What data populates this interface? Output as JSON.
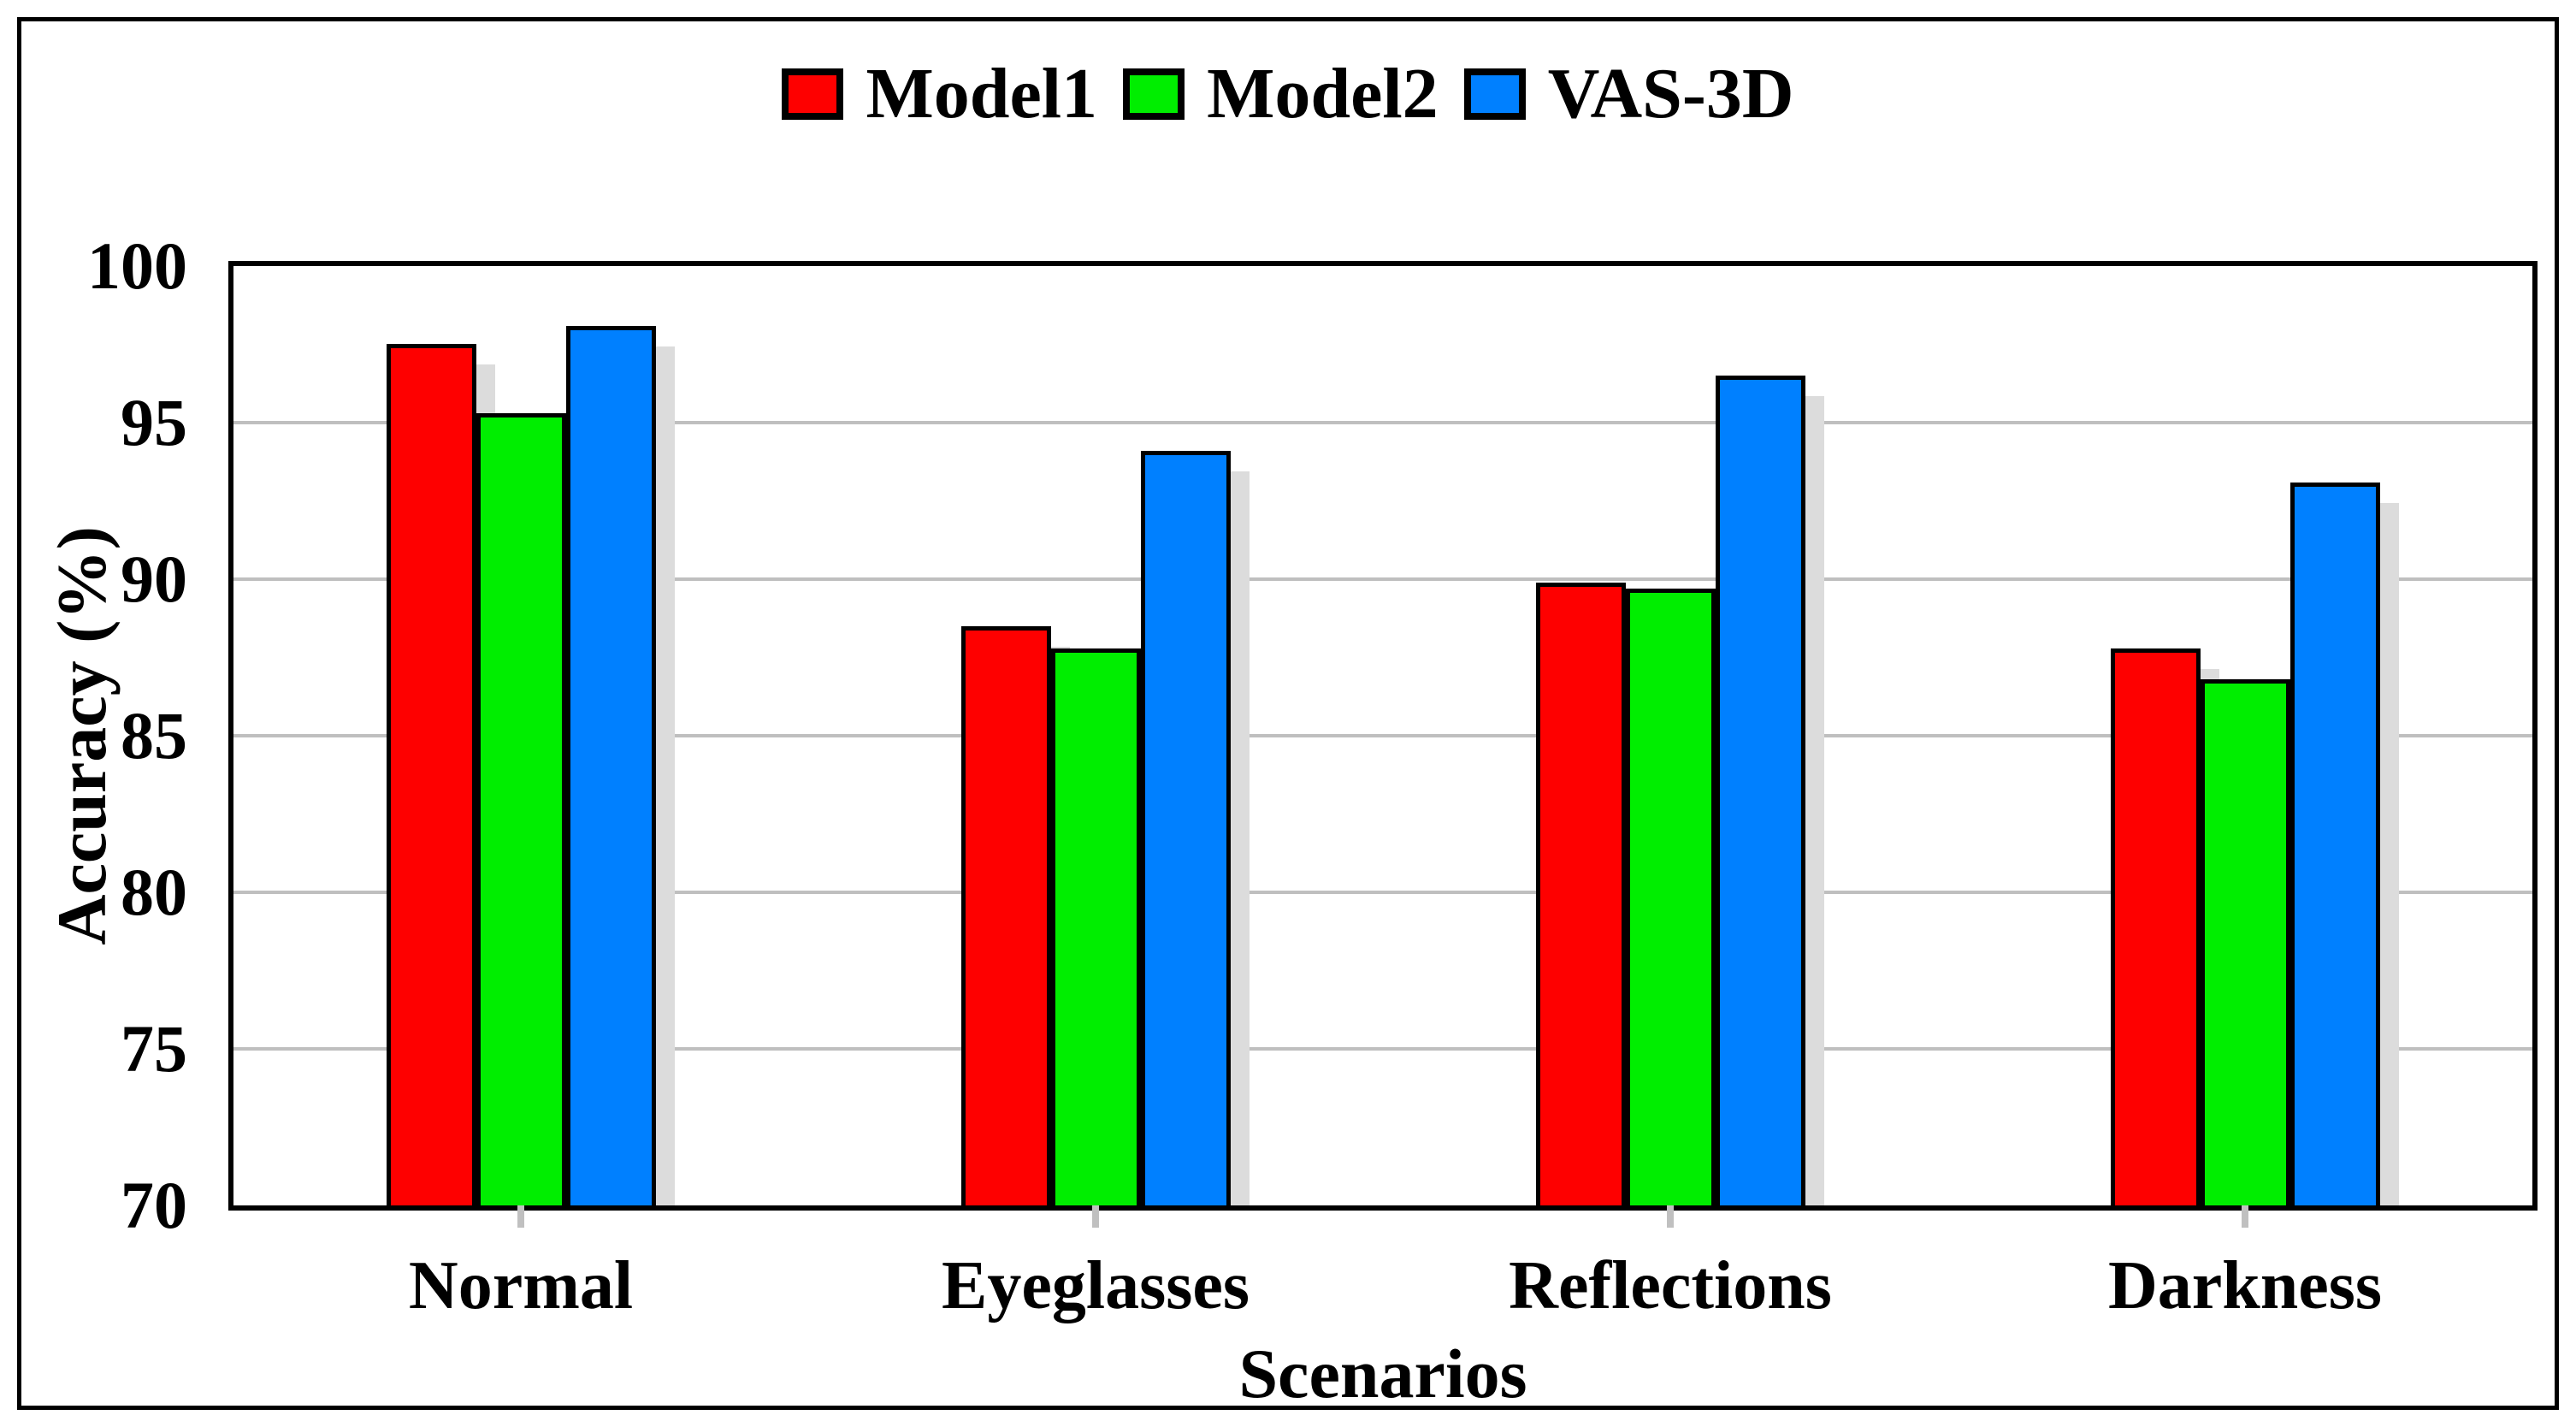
{
  "figure": {
    "background": "#ffffff",
    "border_color": "#000000"
  },
  "legend": {
    "position": "top-center",
    "items": [
      {
        "label": "Model1",
        "color": "#fe0000"
      },
      {
        "label": "Model2",
        "color": "#00ee00"
      },
      {
        "label": "VAS-3D",
        "color": "#0080ff"
      }
    ]
  },
  "y_axis": {
    "title": "Accuracy (%)",
    "tick_labels": [
      "100",
      "95",
      "90",
      "85",
      "80",
      "75",
      "70"
    ],
    "tick_values": [
      100,
      95,
      90,
      85,
      80,
      75,
      70
    ],
    "min": 70,
    "max": 100
  },
  "x_axis": {
    "title": "Scenarios",
    "categories": [
      "Normal",
      "Eyeglasses",
      "Reflections",
      "Darkness"
    ]
  },
  "chart_data": {
    "type": "bar",
    "title": "",
    "xlabel": "Scenarios",
    "ylabel": "Accuracy (%)",
    "ylim": [
      70,
      100
    ],
    "grid": true,
    "gridline_values": [
      75,
      80,
      85,
      90,
      95
    ],
    "gridline_color": "#bfbfbf",
    "bar_shadow_color": "#dcdcdc",
    "legend_position": "top",
    "categories": [
      "Normal",
      "Eyeglasses",
      "Reflections",
      "Darkness"
    ],
    "series": [
      {
        "name": "Model1",
        "color": "#fe0000",
        "values": [
          97.5,
          88.5,
          89.9,
          87.8
        ]
      },
      {
        "name": "Model2",
        "color": "#00ee00",
        "values": [
          95.3,
          87.8,
          89.7,
          86.8
        ]
      },
      {
        "name": "VAS-3D",
        "color": "#0080ff",
        "values": [
          98.1,
          94.1,
          96.5,
          93.1
        ]
      }
    ]
  }
}
